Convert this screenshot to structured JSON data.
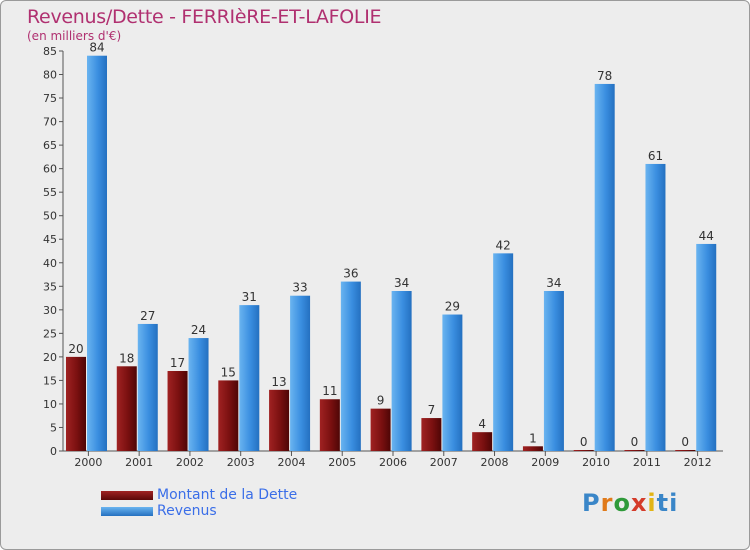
{
  "header": {
    "title": "Revenus/Dette - FERRIèRE-ET-LAFOLIE",
    "subtitle": "(en milliers d'€)"
  },
  "logo": {
    "text": "Proxiti"
  },
  "colors": {
    "debt": "#7a1010",
    "revenue": "#3a8ee0",
    "title": "#b03070",
    "legend_text": "#3a6ee8",
    "background": "#ededed"
  },
  "chart_data": {
    "type": "bar",
    "title": "Revenus/Dette - FERRIèRE-ET-LAFOLIE",
    "subtitle": "(en milliers d'€)",
    "xlabel": "",
    "ylabel": "",
    "categories": [
      "2000",
      "2001",
      "2002",
      "2003",
      "2004",
      "2005",
      "2006",
      "2007",
      "2008",
      "2009",
      "2010",
      "2011",
      "2012"
    ],
    "series": [
      {
        "name": "Montant de la Dette",
        "color": "#7a1010",
        "values": [
          20,
          18,
          17,
          15,
          13,
          11,
          9,
          7,
          4,
          1,
          0,
          0,
          0
        ]
      },
      {
        "name": "Revenus",
        "color": "#3a8ee0",
        "values": [
          84,
          27,
          24,
          31,
          33,
          36,
          34,
          29,
          42,
          34,
          78,
          61,
          44
        ]
      }
    ],
    "ylim": [
      0,
      85
    ],
    "yticks": [
      0,
      5,
      10,
      15,
      20,
      25,
      30,
      35,
      40,
      45,
      50,
      55,
      60,
      65,
      70,
      75,
      80,
      85
    ],
    "grid": false,
    "legend_position": "bottom-left"
  }
}
